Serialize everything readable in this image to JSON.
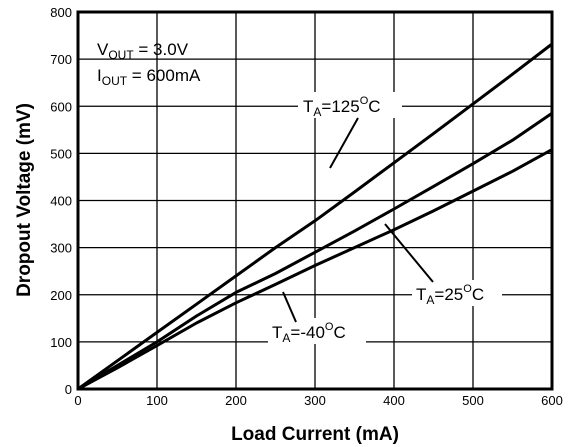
{
  "chart_data": {
    "type": "line",
    "title": "",
    "xlabel": "Load Current (mA)",
    "ylabel": "Dropout Voltage (mV)",
    "xlim": [
      0,
      600
    ],
    "ylim": [
      0,
      800
    ],
    "xticks": [
      0,
      100,
      200,
      300,
      400,
      500,
      600
    ],
    "yticks": [
      0,
      100,
      200,
      300,
      400,
      500,
      600,
      700,
      800
    ],
    "grid": true,
    "conditions": {
      "vout": {
        "sym": "V",
        "sub": "OUT",
        "rest": " = 3.0V"
      },
      "iout": {
        "sym": "I",
        "sub": "OUT",
        "rest": " = 600mA"
      }
    },
    "series": [
      {
        "id": "t125",
        "label": {
          "sym": "T",
          "sub": "A",
          "pre": "=125",
          "sup": "O",
          "post": "C"
        },
        "x": [
          0,
          50,
          100,
          150,
          200,
          250,
          300,
          350,
          400,
          450,
          500,
          550,
          600
        ],
        "y": [
          0,
          60,
          120,
          180,
          240,
          300,
          357,
          418,
          480,
          542,
          605,
          668,
          732
        ]
      },
      {
        "id": "t25",
        "label": {
          "sym": "T",
          "sub": "A",
          "pre": "=25",
          "sup": "O",
          "post": "C"
        },
        "x": [
          0,
          50,
          100,
          150,
          200,
          250,
          300,
          350,
          400,
          450,
          500,
          550,
          600
        ],
        "y": [
          0,
          50,
          100,
          155,
          205,
          245,
          290,
          335,
          382,
          430,
          478,
          528,
          585
        ]
      },
      {
        "id": "tm40",
        "label": {
          "sym": "T",
          "sub": "A",
          "pre": "=-40",
          "sup": "O",
          "post": "C"
        },
        "x": [
          0,
          50,
          100,
          150,
          200,
          250,
          300,
          350,
          400,
          450,
          500,
          550,
          600
        ],
        "y": [
          0,
          45,
          92,
          140,
          183,
          222,
          262,
          300,
          338,
          378,
          420,
          462,
          508
        ]
      }
    ]
  }
}
